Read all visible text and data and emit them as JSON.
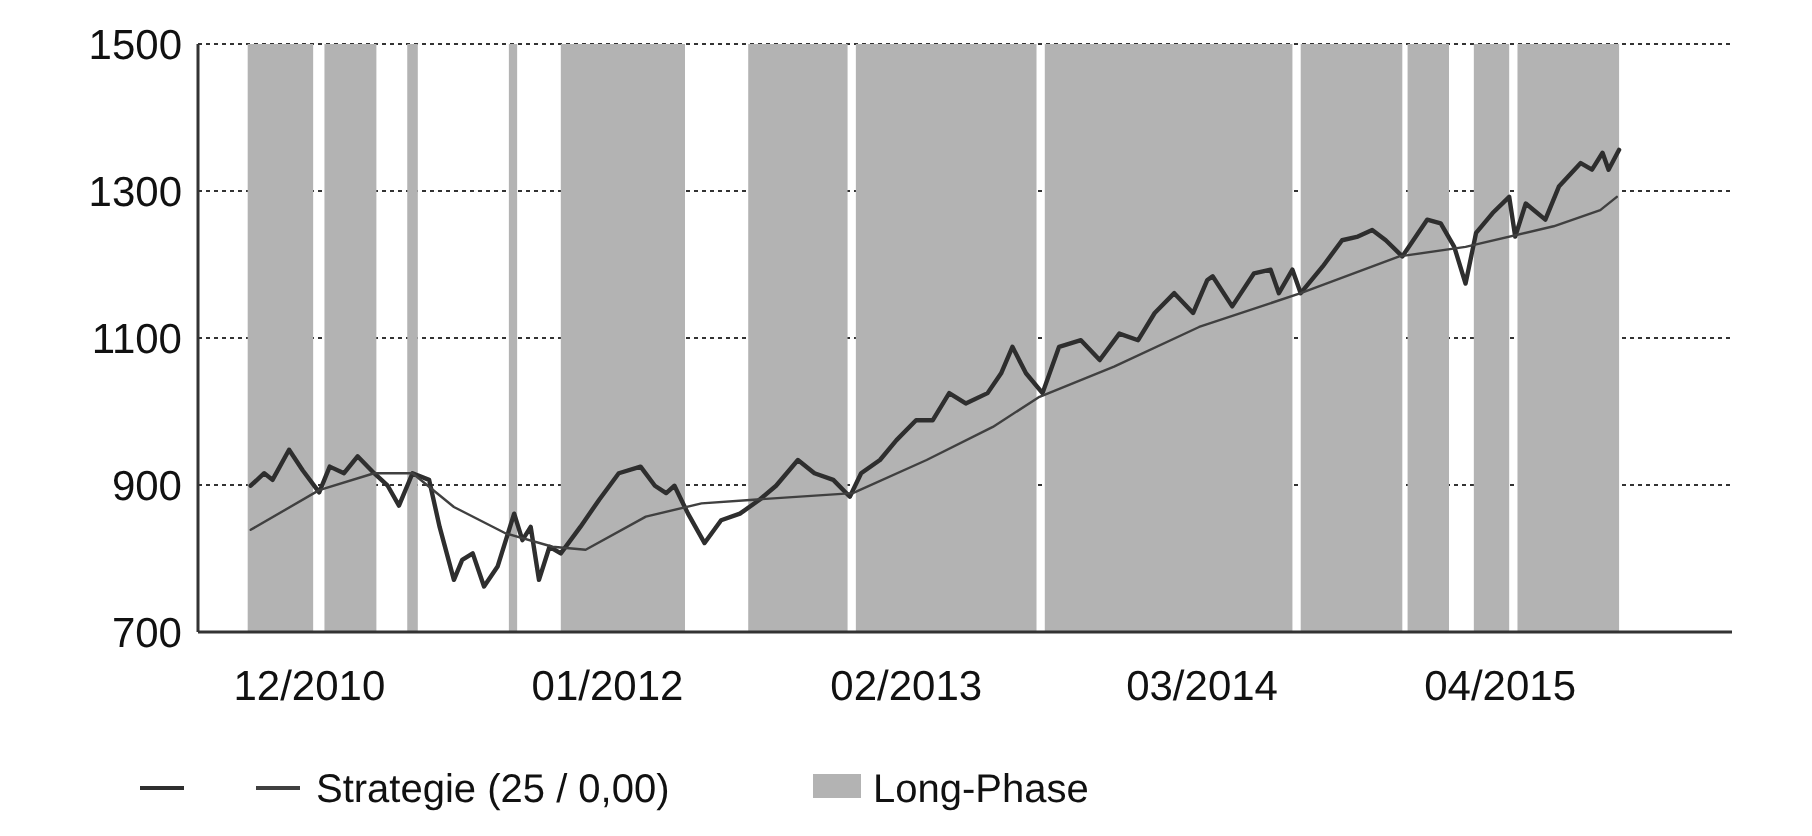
{
  "chart_data": {
    "type": "line",
    "xlim": [
      "2010-07-06",
      "2016-02-03"
    ],
    "xticks": [
      {
        "value": "2010-12-01",
        "label": "12/2010"
      },
      {
        "value": "2012-01-01",
        "label": "01/2012"
      },
      {
        "value": "2013-02-01",
        "label": "02/2013"
      },
      {
        "value": "2014-03-01",
        "label": "03/2014"
      },
      {
        "value": "2015-04-01",
        "label": "04/2015"
      }
    ],
    "ylim": [
      700,
      1500
    ],
    "yticks": [
      700,
      900,
      1100,
      1300,
      1500
    ],
    "grid": "y",
    "legend": "bottom",
    "line_style": "solid",
    "marker": "none",
    "series": [
      {
        "color": "#2e2e2e",
        "x": [
          "2010-09-14",
          "2010-10-02",
          "2010-10-13",
          "2010-11-04",
          "2010-11-22",
          "2010-12-14",
          "2010-12-28",
          "2011-01-16",
          "2011-02-03",
          "2011-02-25",
          "2011-03-15",
          "2011-03-30",
          "2011-04-17",
          "2011-05-09",
          "2011-05-23",
          "2011-06-11",
          "2011-06-22",
          "2011-07-06",
          "2011-07-21",
          "2011-08-08",
          "2011-08-30",
          "2011-09-10",
          "2011-09-21",
          "2011-10-02",
          "2011-10-16",
          "2011-10-31",
          "2011-11-26",
          "2011-12-21",
          "2012-01-16",
          "2012-02-14",
          "2012-03-04",
          "2012-03-19",
          "2012-03-30",
          "2012-04-17",
          "2012-05-09",
          "2012-05-31",
          "2012-06-25",
          "2012-07-21",
          "2012-08-12",
          "2012-09-10",
          "2012-10-02",
          "2012-10-27",
          "2012-11-18",
          "2012-12-03",
          "2012-12-28",
          "2013-01-19",
          "2013-02-14",
          "2013-03-08",
          "2013-03-30",
          "2013-04-21",
          "2013-05-20",
          "2013-06-07",
          "2013-06-22",
          "2013-07-10",
          "2013-08-01",
          "2013-08-23",
          "2013-09-21",
          "2013-10-16",
          "2013-11-11",
          "2013-12-06",
          "2013-12-28",
          "2014-01-23",
          "2014-02-17",
          "2014-03-08",
          "2014-03-15",
          "2014-04-10",
          "2014-05-09",
          "2014-05-31",
          "2014-06-11",
          "2014-06-29",
          "2014-07-10",
          "2014-08-08",
          "2014-09-03",
          "2014-09-24",
          "2014-10-13",
          "2014-10-31",
          "2014-11-22",
          "2014-12-25",
          "2015-01-12",
          "2015-01-30",
          "2015-02-14",
          "2015-02-28",
          "2015-03-22",
          "2015-04-13",
          "2015-04-21",
          "2015-05-05",
          "2015-05-31",
          "2015-06-18",
          "2015-07-17",
          "2015-08-01",
          "2015-08-15",
          "2015-08-23",
          "2015-09-06"
        ],
        "values": [
          899,
          916,
          907,
          948,
          920,
          890,
          925,
          916,
          939,
          916,
          899,
          872,
          916,
          907,
          843,
          771,
          798,
          807,
          762,
          789,
          861,
          825,
          843,
          771,
          816,
          807,
          843,
          880,
          916,
          925,
          899,
          889,
          899,
          861,
          821,
          852,
          861,
          880,
          899,
          934,
          916,
          907,
          884,
          916,
          934,
          961,
          988,
          988,
          1025,
          1011,
          1025,
          1052,
          1088,
          1052,
          1025,
          1088,
          1097,
          1070,
          1106,
          1097,
          1134,
          1161,
          1134,
          1179,
          1184,
          1143,
          1188,
          1193,
          1161,
          1193,
          1161,
          1197,
          1233,
          1238,
          1247,
          1233,
          1211,
          1261,
          1256,
          1224,
          1174,
          1243,
          1270,
          1292,
          1238,
          1283,
          1261,
          1306,
          1338,
          1329,
          1352,
          1329,
          1356
        ]
      },
      {
        "name": "Strategie (25 / 0,00)",
        "color": "#404040",
        "x": [
          "2010-09-14",
          "2010-12-14",
          "2011-02-25",
          "2011-04-17",
          "2011-06-11",
          "2011-08-19",
          "2011-10-20",
          "2011-12-03",
          "2012-02-21",
          "2012-05-05",
          "2012-07-13",
          "2012-11-22",
          "2013-02-28",
          "2013-05-27",
          "2013-07-28",
          "2013-11-04",
          "2014-02-25",
          "2014-07-10",
          "2014-11-18",
          "2015-02-14",
          "2015-06-11",
          "2015-08-12",
          "2015-09-03"
        ],
        "values": [
          839,
          893,
          916,
          916,
          870,
          834,
          816,
          812,
          857,
          875,
          880,
          889,
          934,
          979,
          1020,
          1061,
          1115,
          1161,
          1211,
          1224,
          1252,
          1274,
          1292
        ]
      }
    ],
    "bands": [
      {
        "axis": "x",
        "from": "2010-09-10",
        "to": "2010-12-06",
        "label": "Long-Phase",
        "color": "#b3b3b3"
      },
      {
        "axis": "x",
        "from": "2010-12-21",
        "to": "2011-02-28",
        "color": "#b3b3b3"
      },
      {
        "axis": "x",
        "from": "2011-04-10",
        "to": "2011-04-24",
        "color": "#b3b3b3"
      },
      {
        "axis": "x",
        "from": "2011-08-23",
        "to": "2011-09-03",
        "color": "#b3b3b3"
      },
      {
        "axis": "x",
        "from": "2011-10-31",
        "to": "2012-04-13",
        "color": "#b3b3b3"
      },
      {
        "axis": "x",
        "from": "2012-07-06",
        "to": "2012-11-15",
        "color": "#b3b3b3"
      },
      {
        "axis": "x",
        "from": "2012-11-26",
        "to": "2013-07-24",
        "color": "#b3b3b3"
      },
      {
        "axis": "x",
        "from": "2013-08-04",
        "to": "2014-06-29",
        "color": "#b3b3b3"
      },
      {
        "axis": "x",
        "from": "2014-07-10",
        "to": "2014-11-22",
        "color": "#b3b3b3"
      },
      {
        "axis": "x",
        "from": "2014-11-29",
        "to": "2015-01-23",
        "color": "#b3b3b3"
      },
      {
        "axis": "x",
        "from": "2015-02-25",
        "to": "2015-04-13",
        "color": "#b3b3b3"
      },
      {
        "axis": "x",
        "from": "2015-04-24",
        "to": "2015-09-06",
        "color": "#b3b3b3"
      }
    ]
  }
}
